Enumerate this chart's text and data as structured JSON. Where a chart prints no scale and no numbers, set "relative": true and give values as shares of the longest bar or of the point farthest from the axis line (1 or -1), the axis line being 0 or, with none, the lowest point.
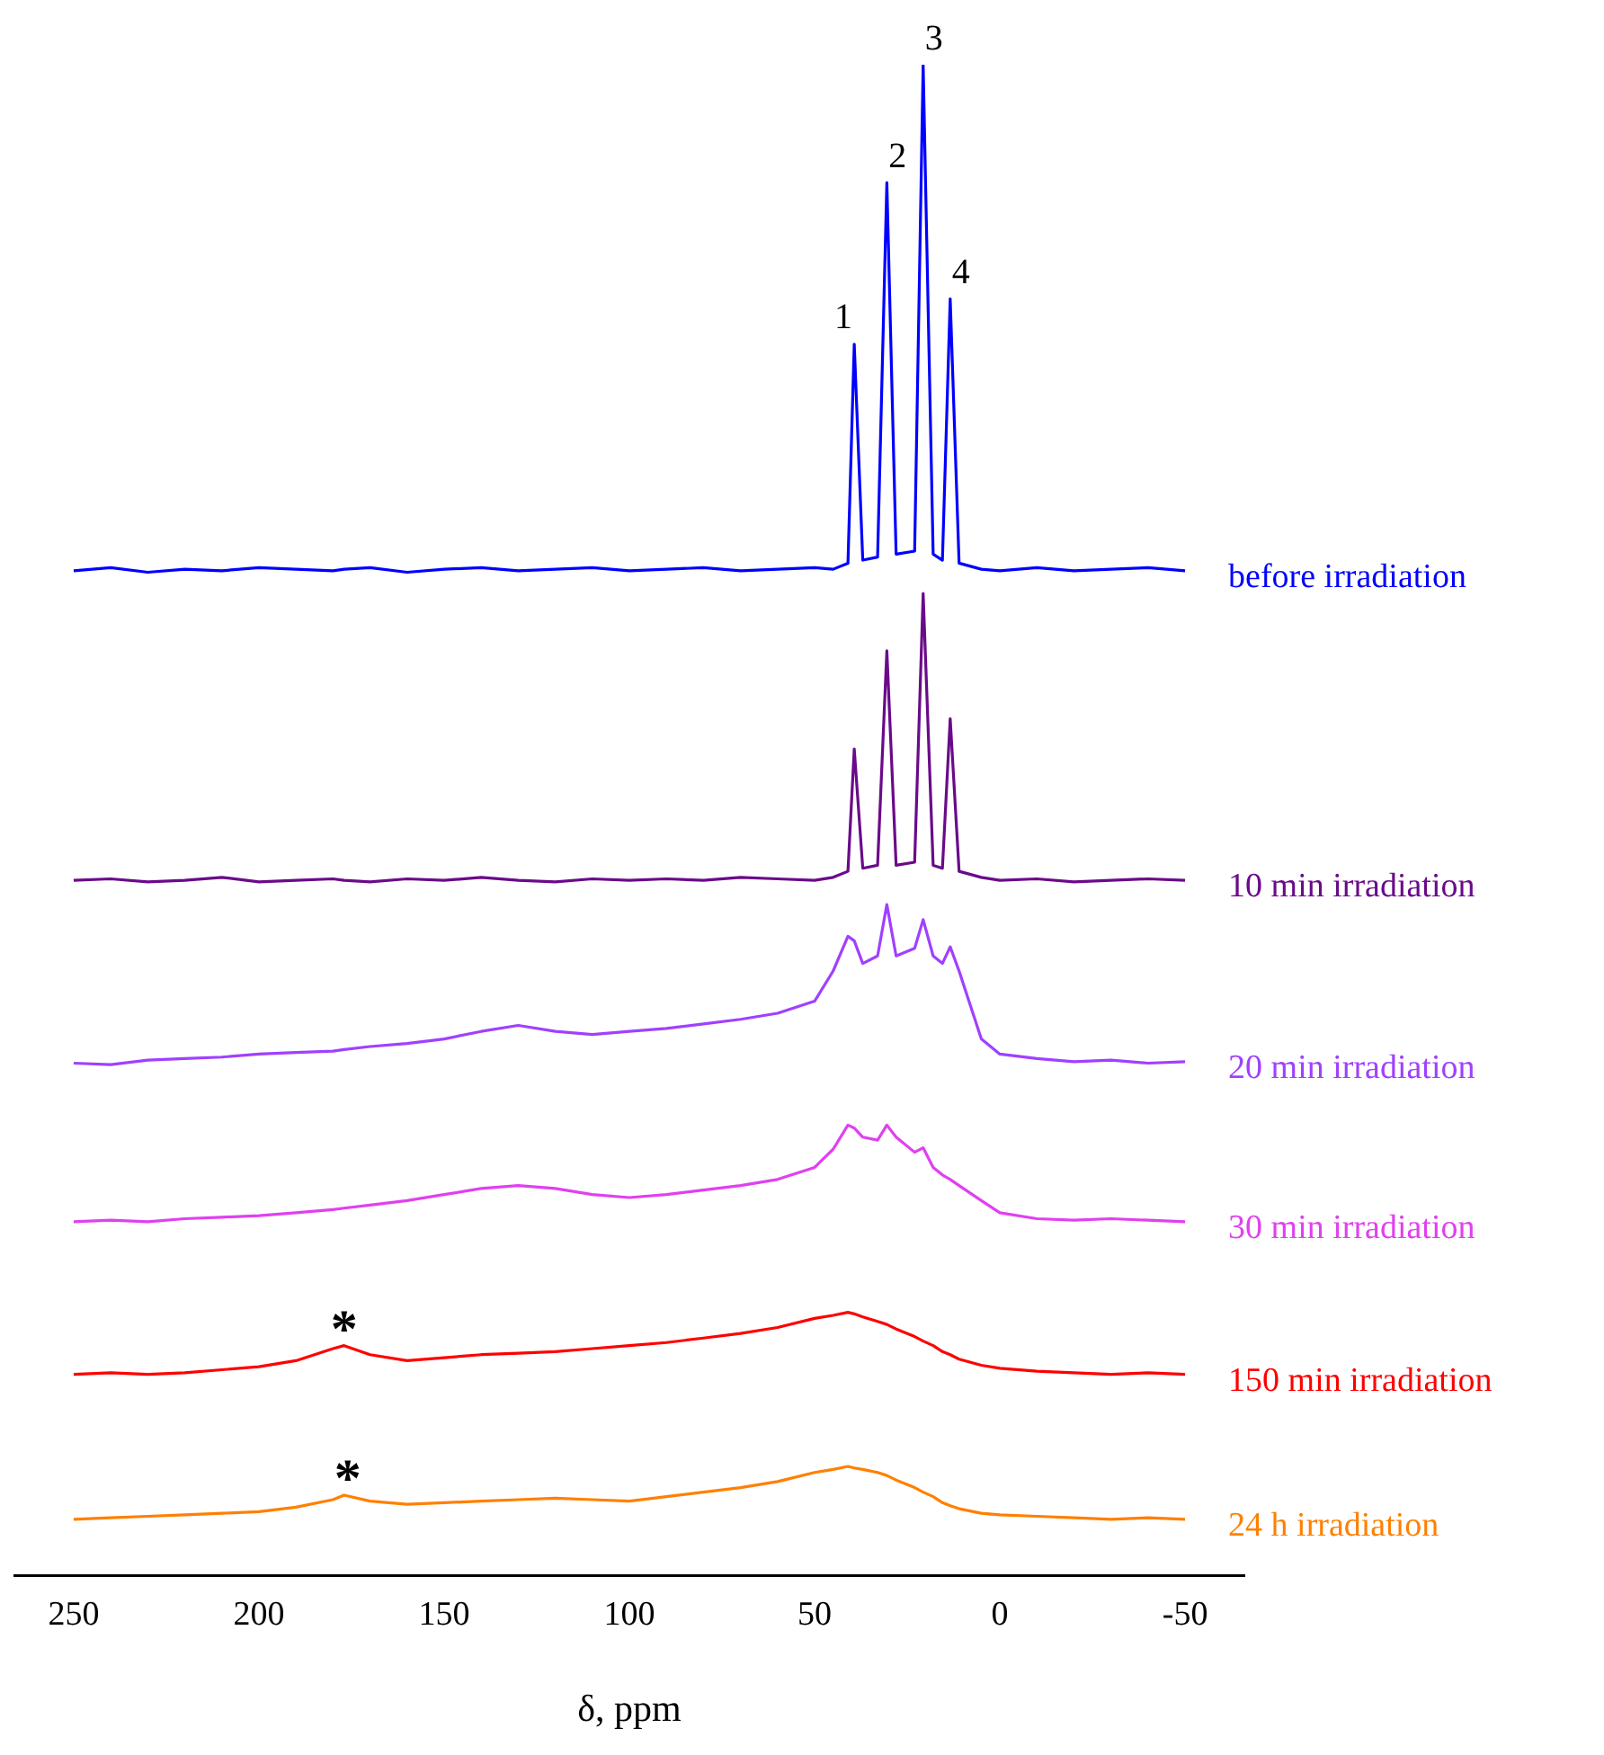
{
  "chart_data": {
    "type": "line",
    "relative": true,
    "xlabel": "δ, ppm",
    "xlim": [
      266,
      -66
    ],
    "xticks": [
      250,
      200,
      150,
      100,
      50,
      0,
      -50
    ],
    "grid": false,
    "legend": false,
    "marker": "none",
    "line_style": "solid",
    "x": [
      250,
      240,
      230,
      220,
      210,
      200,
      190,
      180,
      177,
      170,
      160,
      150,
      140,
      130,
      120,
      110,
      100,
      90,
      80,
      70,
      60,
      50,
      45,
      41,
      39.3,
      37,
      33,
      30.5,
      28,
      23,
      20.7,
      18,
      15.5,
      13.4,
      11,
      5,
      0,
      -10,
      -20,
      -30,
      -40,
      -50
    ],
    "series": [
      {
        "name": "before irradiation",
        "color": "#0000ff",
        "values": [
          0.665,
          0.667,
          0.664,
          0.666,
          0.665,
          0.667,
          0.666,
          0.665,
          0.666,
          0.667,
          0.664,
          0.666,
          0.667,
          0.665,
          0.666,
          0.667,
          0.665,
          0.666,
          0.667,
          0.665,
          0.666,
          0.667,
          0.666,
          0.67,
          0.815,
          0.672,
          0.674,
          0.922,
          0.676,
          0.678,
          1,
          0.676,
          0.672,
          0.845,
          0.67,
          0.666,
          0.665,
          0.667,
          0.665,
          0.666,
          0.667,
          0.665
        ]
      },
      {
        "name": "10 min irradiation",
        "color": "#6a0a8a",
        "values": [
          0.46,
          0.461,
          0.459,
          0.46,
          0.462,
          0.459,
          0.46,
          0.461,
          0.46,
          0.459,
          0.461,
          0.46,
          0.462,
          0.46,
          0.459,
          0.461,
          0.46,
          0.461,
          0.46,
          0.462,
          0.461,
          0.46,
          0.462,
          0.466,
          0.547,
          0.468,
          0.47,
          0.612,
          0.47,
          0.472,
          0.65,
          0.47,
          0.468,
          0.567,
          0.466,
          0.462,
          0.46,
          0.461,
          0.459,
          0.46,
          0.461,
          0.46
        ]
      },
      {
        "name": "20 min irradiation",
        "color": "#a040ff",
        "values": [
          0.339,
          0.338,
          0.341,
          0.342,
          0.343,
          0.345,
          0.346,
          0.347,
          0.348,
          0.35,
          0.352,
          0.355,
          0.36,
          0.364,
          0.36,
          0.358,
          0.36,
          0.362,
          0.365,
          0.368,
          0.372,
          0.38,
          0.4,
          0.423,
          0.42,
          0.405,
          0.41,
          0.444,
          0.41,
          0.415,
          0.434,
          0.41,
          0.405,
          0.416,
          0.4,
          0.355,
          0.345,
          0.342,
          0.34,
          0.341,
          0.339,
          0.34
        ]
      },
      {
        "name": "30 min irradiation",
        "color": "#e040f0",
        "values": [
          0.234,
          0.235,
          0.234,
          0.236,
          0.237,
          0.238,
          0.24,
          0.242,
          0.243,
          0.245,
          0.248,
          0.252,
          0.256,
          0.258,
          0.256,
          0.252,
          0.25,
          0.252,
          0.255,
          0.258,
          0.262,
          0.27,
          0.282,
          0.298,
          0.296,
          0.29,
          0.288,
          0.298,
          0.29,
          0.28,
          0.283,
          0.27,
          0.265,
          0.262,
          0.258,
          0.248,
          0.24,
          0.236,
          0.235,
          0.236,
          0.235,
          0.234
        ]
      },
      {
        "name": "150 min irradiation",
        "color": "#ff0000",
        "values": [
          0.133,
          0.134,
          0.133,
          0.134,
          0.136,
          0.138,
          0.142,
          0.15,
          0.152,
          0.146,
          0.142,
          0.144,
          0.146,
          0.147,
          0.148,
          0.15,
          0.152,
          0.154,
          0.157,
          0.16,
          0.164,
          0.17,
          0.172,
          0.174,
          0.173,
          0.171,
          0.168,
          0.166,
          0.163,
          0.158,
          0.155,
          0.152,
          0.148,
          0.146,
          0.143,
          0.139,
          0.137,
          0.135,
          0.134,
          0.133,
          0.134,
          0.133
        ]
      },
      {
        "name": "24 h irradiation",
        "color": "#ff8000",
        "values": [
          0.037,
          0.038,
          0.039,
          0.04,
          0.041,
          0.042,
          0.045,
          0.05,
          0.053,
          0.049,
          0.047,
          0.048,
          0.049,
          0.05,
          0.051,
          0.05,
          0.049,
          0.052,
          0.055,
          0.058,
          0.062,
          0.068,
          0.07,
          0.072,
          0.071,
          0.07,
          0.068,
          0.066,
          0.063,
          0.058,
          0.055,
          0.052,
          0.048,
          0.046,
          0.044,
          0.041,
          0.04,
          0.039,
          0.038,
          0.037,
          0.038,
          0.037
        ]
      }
    ],
    "annotations": [
      {
        "text": "1",
        "x": 39.3,
        "y": 0.815
      },
      {
        "text": "2",
        "x": 30.5,
        "y": 0.922
      },
      {
        "text": "3",
        "x": 20.7,
        "y": 1
      },
      {
        "text": "4",
        "x": 13.4,
        "y": 0.845
      },
      {
        "text": "*",
        "x": 177,
        "y": 0.152
      },
      {
        "text": "*",
        "x": 176,
        "y": 0.053
      }
    ]
  }
}
